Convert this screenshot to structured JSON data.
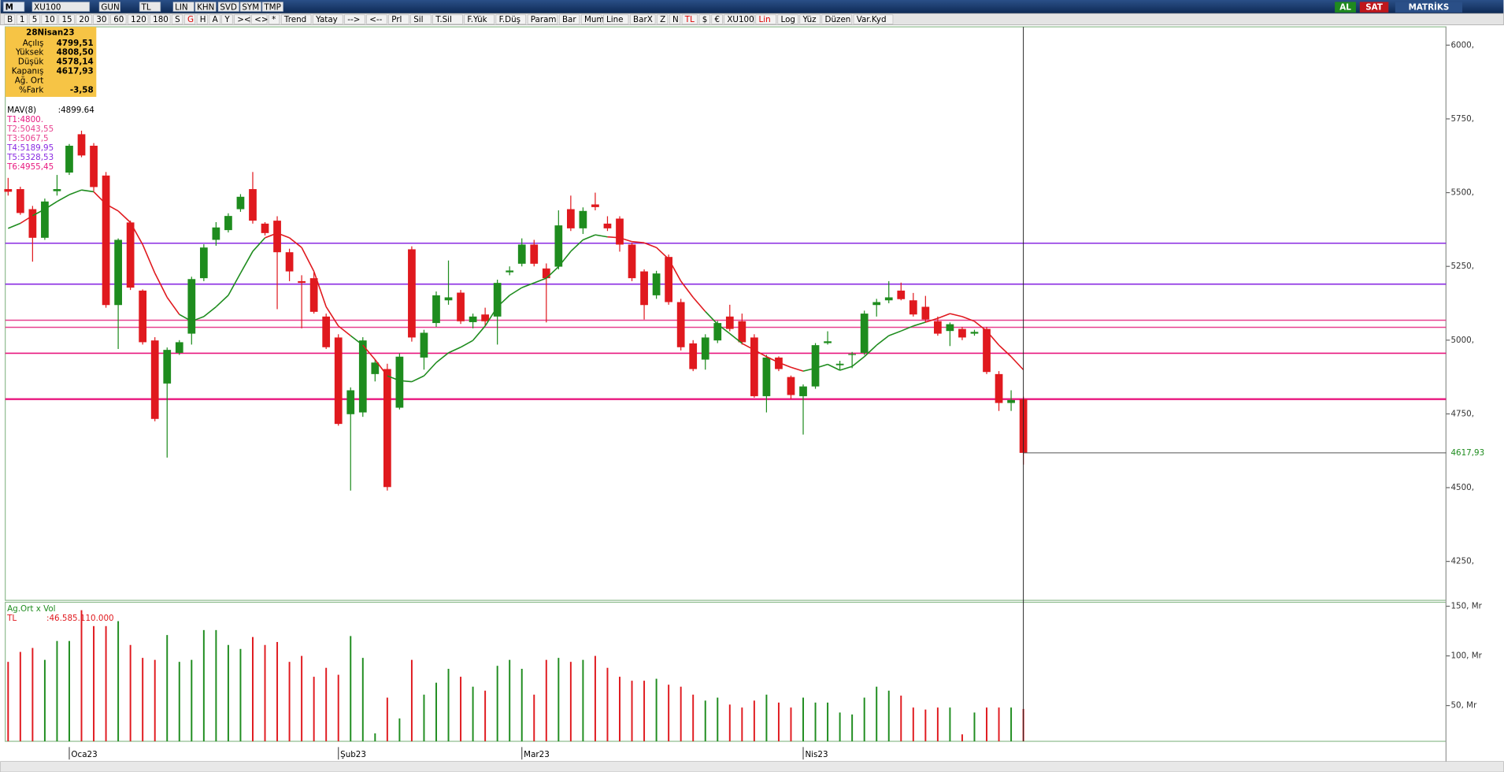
{
  "toolbar": {
    "row1": [
      "M",
      "XU100",
      "GUN",
      "TL",
      "LIN",
      "KHN",
      "SVD",
      "SYM",
      "TMP"
    ],
    "right": [
      "AL",
      "SAT",
      "MATRİKS"
    ],
    "row2": [
      "B",
      "1",
      "5",
      "10",
      "15",
      "20",
      "30",
      "60",
      "120",
      "180",
      "S",
      "G",
      "H",
      "A",
      "Y",
      "><",
      "<>",
      "*",
      "Trend",
      "Yatay",
      "-->",
      "<--",
      "Prl",
      "Sil",
      "T.Sil",
      "F.Yük",
      "F.Düş",
      "Param",
      "Bar",
      "Mum",
      "Line",
      "BarX",
      "Z",
      "N",
      "TL",
      "$",
      "€",
      "XU100",
      "Lin",
      "Log",
      "Yüz",
      "Düzen",
      "Var.Kyd"
    ]
  },
  "info_box": {
    "date": "28Nisan23",
    "rows": [
      [
        "Açılış",
        "4799,51"
      ],
      [
        "Yüksek",
        "4808,50"
      ],
      [
        "Düşük",
        "4578,14"
      ],
      [
        "Kapanış",
        "4617,93"
      ],
      [
        "Ağ. Ort",
        ""
      ],
      [
        "%Fark",
        "-3,58"
      ]
    ]
  },
  "chart_data": [
    {
      "type": "candlestick",
      "categories": [
        null,
        null,
        null,
        null,
        null,
        "Oca23",
        null,
        null,
        null,
        null,
        null,
        null,
        null,
        null,
        null,
        null,
        null,
        null,
        null,
        null,
        null,
        null,
        null,
        null,
        null,
        null,
        null,
        "Şub23",
        null,
        null,
        null,
        null,
        null,
        null,
        null,
        null,
        null,
        null,
        null,
        null,
        null,
        null,
        "Mar23",
        null,
        null,
        null,
        null,
        null,
        null,
        null,
        null,
        null,
        null,
        null,
        null,
        null,
        null,
        null,
        null,
        null,
        null,
        null,
        null,
        null,
        null,
        "Nis23",
        null,
        null,
        null,
        null,
        null,
        null,
        null,
        null,
        null,
        null,
        null,
        null,
        null,
        null,
        null,
        null,
        null,
        null
      ],
      "open": [
        5512,
        5512,
        5444,
        5347,
        5505,
        5568,
        5698,
        5659,
        5558,
        5119,
        5399,
        5168,
        4999,
        4853,
        4957,
        5022,
        5210,
        5340,
        5373,
        5444,
        5512,
        5395,
        5405,
        5298,
        5200,
        5210,
        5080,
        5009,
        4749,
        4755,
        4885,
        4902,
        4771,
        5308,
        4941,
        5058,
        5135,
        5161,
        5061,
        5087,
        5080,
        5230,
        5259,
        5324,
        5243,
        5249,
        5444,
        5379,
        5460,
        5395,
        5412,
        5324,
        5233,
        5152,
        5282,
        5129,
        4989,
        4934,
        4999,
        5080,
        5064,
        5009,
        4810,
        4941,
        4875,
        4810,
        4843,
        4990,
        4915,
        4950,
        4957,
        5119,
        5135,
        5168,
        5135,
        5113,
        5064,
        5031,
        5038,
        5022,
        5038,
        4885,
        4787,
        4799.51
      ],
      "high": [
        5550,
        5520,
        5455,
        5480,
        5560,
        5665,
        5710,
        5668,
        5570,
        5345,
        5405,
        5172,
        5010,
        4975,
        5000,
        5215,
        5325,
        5400,
        5430,
        5495,
        5570,
        5400,
        5420,
        5310,
        5220,
        5230,
        5090,
        5020,
        4840,
        5010,
        4935,
        4920,
        4955,
        5318,
        5035,
        5165,
        5270,
        5170,
        5090,
        5110,
        5205,
        5250,
        5345,
        5340,
        5260,
        5440,
        5490,
        5450,
        5500,
        5420,
        5420,
        5330,
        5240,
        5235,
        5290,
        5140,
        5000,
        5020,
        5065,
        5120,
        5090,
        5020,
        4950,
        4945,
        4880,
        4850,
        4990,
        5030,
        4930,
        4960,
        5100,
        5140,
        5200,
        5195,
        5160,
        5150,
        5080,
        5060,
        5045,
        5035,
        5045,
        4895,
        4830,
        4808.5
      ],
      "low": [
        5490,
        5425,
        5266,
        5340,
        5490,
        5560,
        5620,
        5505,
        5110,
        4970,
        5170,
        4985,
        4725,
        4602,
        4950,
        4985,
        5200,
        5320,
        5365,
        5435,
        5395,
        5355,
        5105,
        5200,
        5040,
        5090,
        4970,
        4710,
        4490,
        4740,
        4860,
        4490,
        4765,
        4995,
        4900,
        5045,
        5120,
        5055,
        5040,
        5050,
        4985,
        5220,
        5250,
        5250,
        5060,
        5240,
        5370,
        5360,
        5440,
        5370,
        5300,
        5200,
        5070,
        5140,
        5120,
        4965,
        4895,
        4900,
        4990,
        5030,
        4985,
        4805,
        4755,
        4895,
        4800,
        4680,
        4835,
        4985,
        4900,
        4905,
        4950,
        5080,
        5125,
        5135,
        5080,
        5060,
        5015,
        4980,
        5000,
        5015,
        4885,
        4760,
        4760,
        4578.14
      ],
      "close": [
        5503,
        5431,
        5347,
        5470,
        5512,
        5659,
        5626,
        5519,
        5119,
        5340,
        5178,
        4993,
        4733,
        4967,
        4993,
        5207,
        5314,
        5382,
        5421,
        5486,
        5405,
        5363,
        5298,
        5233,
        5194,
        5096,
        4976,
        4716,
        4830,
        4999,
        4924,
        4502,
        4944,
        5009,
        5025,
        5152,
        5145,
        5064,
        5080,
        5064,
        5194,
        5236,
        5324,
        5259,
        5210,
        5389,
        5379,
        5438,
        5451,
        5379,
        5324,
        5210,
        5119,
        5226,
        5129,
        4976,
        4902,
        5009,
        5058,
        5038,
        4993,
        4810,
        4941,
        4902,
        4814,
        4843,
        4983,
        4996,
        4920,
        4953,
        5090,
        5129,
        5145,
        5139,
        5087,
        5070,
        5022,
        5054,
        5009,
        5028,
        4892,
        4787,
        4797,
        4617.93
      ],
      "up_color": "#1e8c1e",
      "down_color": "#e0191e",
      "ylim": [
        4118,
        6062
      ],
      "yticks": [
        {
          "value": 4250,
          "label": "4250,"
        },
        {
          "value": 4500,
          "label": "4500,"
        },
        {
          "value": 4750,
          "label": "4750,"
        },
        {
          "value": 5000,
          "label": "5000,"
        },
        {
          "value": 5250,
          "label": "5250,"
        },
        {
          "value": 5500,
          "label": "5500,"
        },
        {
          "value": 5750,
          "label": "5750,"
        },
        {
          "value": 6000,
          "label": "6000,"
        }
      ],
      "ma": {
        "name": "MAV(8)",
        "value_label": ":4899.64",
        "values": [
          5379,
          5396,
          5422,
          5444,
          5470,
          5493,
          5509,
          5503,
          5461,
          5438,
          5399,
          5324,
          5227,
          5145,
          5087,
          5064,
          5080,
          5113,
          5152,
          5227,
          5301,
          5347,
          5363,
          5347,
          5314,
          5233,
          5113,
          5048,
          5015,
          4983,
          4934,
          4879,
          4863,
          4859,
          4879,
          4924,
          4957,
          4976,
          4999,
          5048,
          5113,
          5152,
          5178,
          5194,
          5210,
          5249,
          5301,
          5340,
          5357,
          5350,
          5347,
          5334,
          5330,
          5314,
          5275,
          5200,
          5145,
          5097,
          5054,
          5022,
          4989,
          4967,
          4944,
          4924,
          4908,
          4895,
          4905,
          4918,
          4898,
          4911,
          4944,
          4983,
          5015,
          5031,
          5048,
          5061,
          5074,
          5090,
          5080,
          5064,
          5031,
          4983,
          4944,
          4899.64
        ]
      },
      "levels": [
        {
          "label": "T1:4800.",
          "value": 4800,
          "color": "#e8177f"
        },
        {
          "label": "T2:5043,55",
          "value": 5043.55,
          "color": "#e8418f"
        },
        {
          "label": "T3:5067,5",
          "value": 5067.5,
          "color": "#e8418f"
        },
        {
          "label": "T4:5189,95",
          "value": 5189.95,
          "color": "#8a2be2"
        },
        {
          "label": "T5:5328,53",
          "value": 5328.53,
          "color": "#8a2be2"
        },
        {
          "label": "T6:4955,45",
          "value": 4955.45,
          "color": "#e8177f"
        }
      ],
      "last_label": {
        "value": 4617.93,
        "label": "4617,93"
      }
    },
    {
      "type": "bar",
      "title": "Ag.Ort x Vol",
      "series": [
        {
          "name": "TL",
          "value_label": ":46.585.110.000",
          "values": [
            94,
            104,
            108,
            96,
            115,
            115,
            146,
            130,
            130,
            135,
            111,
            98,
            96,
            121,
            94,
            96,
            126,
            126,
            111,
            107,
            119,
            111,
            114,
            94,
            100,
            79,
            88,
            81,
            120,
            98,
            22,
            58,
            37,
            96,
            61,
            73,
            87,
            79,
            69,
            65,
            90,
            96,
            87,
            61,
            96,
            98,
            94,
            96,
            100,
            88,
            79,
            75,
            75,
            77,
            71,
            69,
            61,
            55,
            58,
            51,
            48,
            55,
            61,
            53,
            48,
            58,
            53,
            53,
            43,
            41,
            58,
            69,
            65,
            60,
            48,
            46,
            48,
            48,
            21,
            43,
            48,
            48,
            48,
            46.585
          ]
        }
      ],
      "ylim": [
        14,
        154
      ],
      "yticks": [
        {
          "value": 50,
          "label": "50, Mr"
        },
        {
          "value": 100,
          "label": "100, Mr"
        },
        {
          "value": 150,
          "label": "150, Mr"
        }
      ]
    }
  ]
}
